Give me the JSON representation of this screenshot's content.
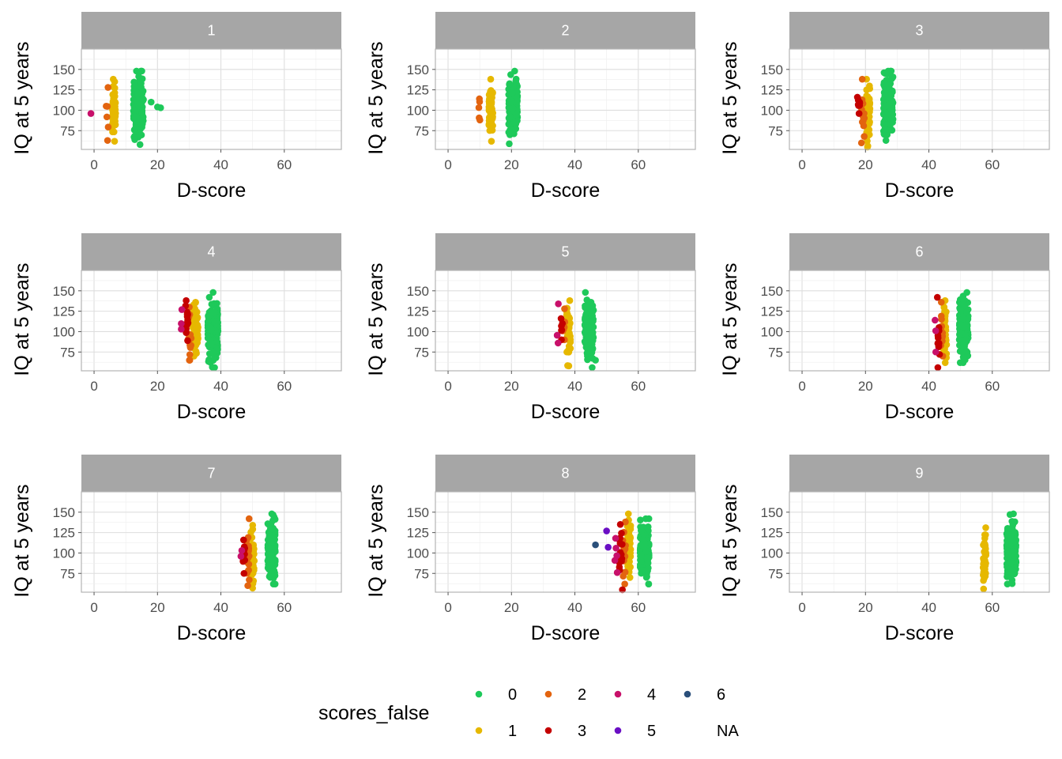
{
  "chart_data": {
    "type": "scatter",
    "facet_variable": "",
    "xlabel": "D-score",
    "ylabel": "IQ at 5 years",
    "xlim": [
      -4,
      78
    ],
    "ylim": [
      52,
      175
    ],
    "x_ticks": [
      "0",
      "20",
      "40",
      "60"
    ],
    "y_ticks": [
      "75",
      "100",
      "125",
      "150"
    ],
    "grid": true,
    "legend": {
      "title": "scores_false",
      "position": "bottom",
      "entries": [
        {
          "label": "0",
          "color": "#1ec95a"
        },
        {
          "label": "1",
          "color": "#e6b800"
        },
        {
          "label": "2",
          "color": "#e3640f"
        },
        {
          "label": "3",
          "color": "#c40000"
        },
        {
          "label": "4",
          "color": "#c8106a"
        },
        {
          "label": "5",
          "color": "#6a0fc4"
        },
        {
          "label": "6",
          "color": "#2a4f7a"
        },
        {
          "label": "NA",
          "color": ""
        }
      ]
    },
    "panels": [
      {
        "label": "1",
        "clusters": [
          {
            "group": "0",
            "x": 14,
            "spread": 1.6,
            "n": 150,
            "ymin": 58,
            "ymax": 148,
            "extra": [
              [
                20,
                104
              ],
              [
                21,
                103
              ],
              [
                18,
                110
              ]
            ]
          },
          {
            "group": "1",
            "x": 6.3,
            "spread": 0.5,
            "n": 55,
            "ymin": 62,
            "ymax": 138
          },
          {
            "group": "2",
            "x": 4.2,
            "spread": 0.4,
            "n": 6,
            "ymin": 63,
            "ymax": 128
          },
          {
            "group": "4",
            "x": -1,
            "spread": 0,
            "n": 0,
            "ymin": 96,
            "ymax": 96,
            "extra": [
              [
                -1,
                96
              ]
            ]
          }
        ]
      },
      {
        "label": "2",
        "clusters": [
          {
            "group": "0",
            "x": 20.5,
            "spread": 1.4,
            "n": 170,
            "ymin": 59,
            "ymax": 148
          },
          {
            "group": "1",
            "x": 13.5,
            "spread": 0.6,
            "n": 70,
            "ymin": 62,
            "ymax": 138
          },
          {
            "group": "2",
            "x": 9.8,
            "spread": 0.3,
            "n": 5,
            "ymin": 88,
            "ymax": 114
          }
        ]
      },
      {
        "label": "3",
        "clusters": [
          {
            "group": "0",
            "x": 27.2,
            "spread": 1.5,
            "n": 170,
            "ymin": 63,
            "ymax": 148
          },
          {
            "group": "1",
            "x": 20.8,
            "spread": 0.6,
            "n": 70,
            "ymin": 55,
            "ymax": 138
          },
          {
            "group": "2",
            "x": 19.2,
            "spread": 0.5,
            "n": 12,
            "ymin": 60,
            "ymax": 138
          },
          {
            "group": "3",
            "x": 17.8,
            "spread": 0.4,
            "n": 10,
            "ymin": 96,
            "ymax": 116
          }
        ]
      },
      {
        "label": "4",
        "clusters": [
          {
            "group": "0",
            "x": 37.5,
            "spread": 1.6,
            "n": 170,
            "ymin": 56,
            "ymax": 148
          },
          {
            "group": "1",
            "x": 32.0,
            "spread": 0.8,
            "n": 70,
            "ymin": 70,
            "ymax": 136
          },
          {
            "group": "2",
            "x": 30.2,
            "spread": 0.5,
            "n": 15,
            "ymin": 65,
            "ymax": 130
          },
          {
            "group": "3",
            "x": 29.2,
            "spread": 0.5,
            "n": 14,
            "ymin": 89,
            "ymax": 138
          },
          {
            "group": "4",
            "x": 27.5,
            "spread": 0.3,
            "n": 3,
            "ymin": 103,
            "ymax": 127
          }
        ]
      },
      {
        "label": "5",
        "clusters": [
          {
            "group": "0",
            "x": 44.5,
            "spread": 1.4,
            "n": 170,
            "ymin": 56,
            "ymax": 148,
            "extra": [
              [
                46.5,
                65
              ]
            ]
          },
          {
            "group": "1",
            "x": 38.0,
            "spread": 0.6,
            "n": 55,
            "ymin": 58,
            "ymax": 138
          },
          {
            "group": "2",
            "x": 36.5,
            "spread": 0.4,
            "n": 8,
            "ymin": 90,
            "ymax": 128
          },
          {
            "group": "3",
            "x": 35.8,
            "spread": 0.3,
            "n": 6,
            "ymin": 90,
            "ymax": 116
          },
          {
            "group": "4",
            "x": 34.5,
            "spread": 0.3,
            "n": 3,
            "ymin": 86,
            "ymax": 134
          }
        ]
      },
      {
        "label": "6",
        "clusters": [
          {
            "group": "0",
            "x": 51.0,
            "spread": 1.4,
            "n": 170,
            "ymin": 62,
            "ymax": 148
          },
          {
            "group": "1",
            "x": 45.0,
            "spread": 0.6,
            "n": 60,
            "ymin": 62,
            "ymax": 138
          },
          {
            "group": "2",
            "x": 44.0,
            "spread": 0.4,
            "n": 12,
            "ymin": 70,
            "ymax": 136
          },
          {
            "group": "3",
            "x": 43.0,
            "spread": 0.4,
            "n": 12,
            "ymin": 56,
            "ymax": 142
          },
          {
            "group": "4",
            "x": 42.0,
            "spread": 0.3,
            "n": 3,
            "ymin": 75,
            "ymax": 114
          }
        ]
      },
      {
        "label": "7",
        "clusters": [
          {
            "group": "0",
            "x": 56.0,
            "spread": 1.2,
            "n": 160,
            "ymin": 62,
            "ymax": 148
          },
          {
            "group": "1",
            "x": 50.0,
            "spread": 0.6,
            "n": 55,
            "ymin": 57,
            "ymax": 134
          },
          {
            "group": "2",
            "x": 48.5,
            "spread": 0.5,
            "n": 20,
            "ymin": 60,
            "ymax": 142
          },
          {
            "group": "3",
            "x": 47.2,
            "spread": 0.4,
            "n": 8,
            "ymin": 75,
            "ymax": 116
          },
          {
            "group": "4",
            "x": 46.5,
            "spread": 0.2,
            "n": 2,
            "ymin": 96,
            "ymax": 103
          }
        ]
      },
      {
        "label": "8",
        "clusters": [
          {
            "group": "0",
            "x": 62.0,
            "spread": 1.4,
            "n": 170,
            "ymin": 62,
            "ymax": 142
          },
          {
            "group": "1",
            "x": 57.0,
            "spread": 0.6,
            "n": 60,
            "ymin": 70,
            "ymax": 148
          },
          {
            "group": "2",
            "x": 55.5,
            "spread": 0.5,
            "n": 15,
            "ymin": 62,
            "ymax": 138
          },
          {
            "group": "3",
            "x": 54.5,
            "spread": 0.5,
            "n": 15,
            "ymin": 55,
            "ymax": 135
          },
          {
            "group": "4",
            "x": 53.0,
            "spread": 0.4,
            "n": 5,
            "ymin": 76,
            "ymax": 118
          },
          {
            "group": "5",
            "x": 50.5,
            "spread": 0.3,
            "n": 0,
            "ymin": 107,
            "ymax": 127,
            "extra": [
              [
                50.0,
                127
              ],
              [
                50.5,
                107
              ]
            ]
          },
          {
            "group": "6",
            "x": 46.5,
            "spread": 0,
            "n": 0,
            "ymin": 110,
            "ymax": 110,
            "extra": [
              [
                46.5,
                110
              ]
            ]
          }
        ]
      },
      {
        "label": "9",
        "clusters": [
          {
            "group": "0",
            "x": 66.0,
            "spread": 1.5,
            "n": 180,
            "ymin": 62,
            "ymax": 148
          },
          {
            "group": "1",
            "x": 57.5,
            "spread": 0.5,
            "n": 45,
            "ymin": 56,
            "ymax": 131
          }
        ]
      }
    ]
  }
}
